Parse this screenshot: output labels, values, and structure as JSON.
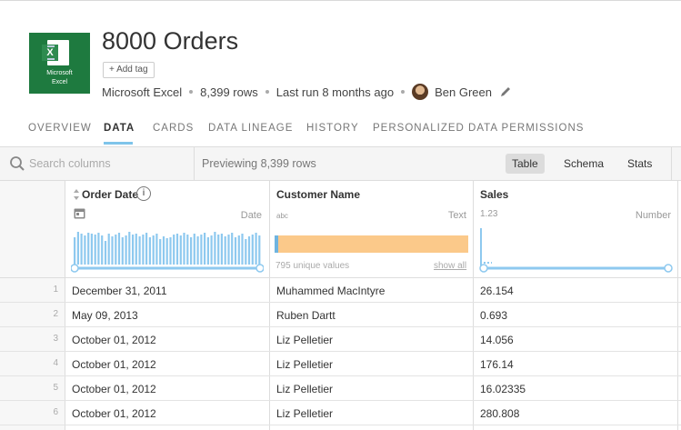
{
  "dataset": {
    "title": "8000 Orders",
    "add_tag": "+ Add tag",
    "logo": {
      "line1": "Microsoft",
      "line2": "Excel",
      "letter": "X"
    },
    "meta": {
      "source": "Microsoft Excel",
      "rows": "8,399 rows",
      "last_run": "Last run 8 months ago",
      "owner": "Ben Green"
    }
  },
  "tabs": [
    {
      "label": "OVERVIEW",
      "active": false
    },
    {
      "label": "DATA",
      "active": true
    },
    {
      "label": "CARDS",
      "active": false
    },
    {
      "label": "DATA LINEAGE",
      "active": false
    },
    {
      "label": "HISTORY",
      "active": false
    },
    {
      "label": "PERSONALIZED DATA PERMISSIONS",
      "active": false
    }
  ],
  "toolbar": {
    "search_placeholder": "Search columns",
    "previewing": "Previewing 8,399 rows",
    "views": [
      {
        "label": "Table",
        "active": true
      },
      {
        "label": "Schema",
        "active": false
      },
      {
        "label": "Stats",
        "active": false
      }
    ]
  },
  "columns": [
    {
      "name": "Order Date",
      "type": "Date",
      "type_glyph": "calendar-icon"
    },
    {
      "name": "Customer Name",
      "type": "Text",
      "type_glyph": "abc"
    },
    {
      "name": "Sales",
      "type": "Number",
      "type_glyph": "1.23"
    }
  ],
  "profiles": {
    "customer_unique": "795 unique values",
    "show_all": "show all"
  },
  "rows": [
    {
      "n": "1",
      "date": "December 31, 2011",
      "customer": "Muhammed MacIntyre",
      "sales": "26.154"
    },
    {
      "n": "2",
      "date": "May 09, 2013",
      "customer": "Ruben Dartt",
      "sales": "0.693"
    },
    {
      "n": "3",
      "date": "October 01, 2012",
      "customer": "Liz Pelletier",
      "sales": "14.056"
    },
    {
      "n": "4",
      "date": "October 01, 2012",
      "customer": "Liz Pelletier",
      "sales": "176.14"
    },
    {
      "n": "5",
      "date": "October 01, 2012",
      "customer": "Liz Pelletier",
      "sales": "16.02335"
    },
    {
      "n": "6",
      "date": "October 01, 2012",
      "customer": "Liz Pelletier",
      "sales": "280.808"
    }
  ],
  "colors": {
    "accent": "#7ec4ea",
    "excel_green": "#1e7a3f",
    "text_bar": "#fbc98a",
    "hist_bar": "#8ec9ef"
  }
}
